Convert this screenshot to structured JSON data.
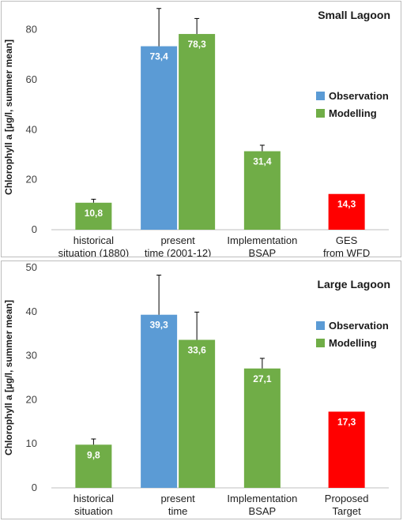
{
  "chart_data": [
    {
      "type": "bar",
      "title": "Small Lagoon",
      "ylabel": "Chlorophyll a [µg/l, summer mean]",
      "xlabel": "",
      "ylim": [
        0,
        90
      ],
      "yticks": [
        0,
        20,
        40,
        60,
        80
      ],
      "legend_position": "right",
      "categories": [
        [
          "historical",
          "situation (1880)"
        ],
        [
          "present",
          "time (2001-12)"
        ],
        [
          "Implementation",
          "BSAP"
        ],
        [
          "GES",
          "from WFD"
        ]
      ],
      "series": [
        {
          "name": "Observation",
          "color": "#5B9BD5",
          "values": [
            null,
            73.4,
            null,
            null
          ],
          "errors": [
            null,
            88.5,
            null,
            null
          ],
          "labels": [
            null,
            "73,4",
            null,
            null
          ]
        },
        {
          "name": "Modelling",
          "color": "#70AD47",
          "values": [
            10.8,
            78.3,
            31.4,
            null
          ],
          "errors": [
            12.2,
            84.5,
            33.8,
            null
          ],
          "labels": [
            "10,8",
            "78,3",
            "31,4",
            null
          ]
        }
      ],
      "target": {
        "category_index": 3,
        "value": 14.3,
        "label": "14,3",
        "color": "#FF0000"
      }
    },
    {
      "type": "bar",
      "title": "Large Lagoon",
      "ylabel": "Chlorophyll a [µg/l, summer mean]",
      "xlabel": "",
      "ylim": [
        0,
        50
      ],
      "yticks": [
        0,
        10,
        20,
        30,
        40,
        50
      ],
      "legend_position": "right",
      "categories": [
        [
          "historical",
          "situation"
        ],
        [
          "present",
          "time"
        ],
        [
          "Implementation",
          "BSAP"
        ],
        [
          "Proposed",
          "Target"
        ]
      ],
      "series": [
        {
          "name": "Observation",
          "color": "#5B9BD5",
          "values": [
            null,
            39.3,
            null,
            null
          ],
          "errors": [
            null,
            48.3,
            null,
            null
          ],
          "labels": [
            null,
            "39,3",
            null,
            null
          ]
        },
        {
          "name": "Modelling",
          "color": "#70AD47",
          "values": [
            9.8,
            33.6,
            27.1,
            null
          ],
          "errors": [
            11.1,
            39.9,
            29.4,
            null
          ],
          "labels": [
            "9,8",
            "33,6",
            "27,1",
            null
          ]
        }
      ],
      "target": {
        "category_index": 3,
        "value": 17.3,
        "label": "17,3",
        "color": "#FF0000"
      }
    }
  ]
}
